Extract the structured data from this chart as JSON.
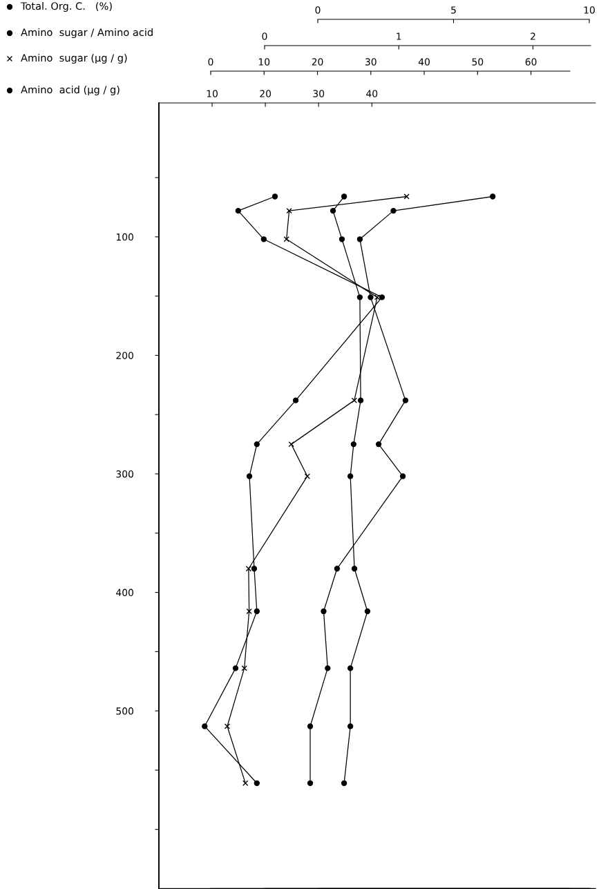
{
  "chart_data": [
    {
      "type": "line",
      "ylim": [
        650,
        -13
      ],
      "yticks": [
        {
          "value": 50,
          "label": null
        },
        100,
        {
          "value": 150,
          "label": null
        },
        200,
        {
          "value": 250,
          "label": null
        },
        300,
        {
          "value": 350,
          "label": null
        },
        400,
        {
          "value": 450,
          "label": null
        },
        500,
        {
          "value": 550,
          "label": null
        },
        {
          "value": 600,
          "label": null
        }
      ],
      "xlim": [
        0,
        82
      ],
      "xticks": [
        10,
        20,
        30,
        40
      ],
      "grid": false,
      "legend": "top left",
      "line_style": "solid",
      "marker": "circle",
      "series": [
        {
          "name": "Amino  acid (μg / g)",
          "color": "#000000",
          "x": [
            21.8,
            14.9,
            19.7,
            41.9,
            25.7,
            18.4,
            17.0,
            17.9,
            18.4,
            14.4,
            8.6,
            18.4
          ],
          "values": [
            66,
            78,
            102,
            151,
            238,
            275,
            302,
            380,
            416,
            464,
            513,
            561
          ]
        }
      ]
    },
    {
      "type": "line",
      "ylim": [
        650,
        -13
      ],
      "tick_labels": "x",
      "xlim": [
        0,
        67.3
      ],
      "xticks": [
        0,
        10,
        20,
        30,
        40,
        50,
        60
      ],
      "grid": false,
      "legend": "top left",
      "line_style": "solid",
      "marker": "cross",
      "series": [
        {
          "name": "Amino  sugar (μg / g)",
          "color": "#000000",
          "x": [
            36.7,
            14.7,
            14.2,
            31.2,
            26.9,
            15.1,
            18.1,
            7.1,
            7.2,
            6.3,
            3.1,
            6.5
          ],
          "values": [
            66,
            78,
            102,
            151,
            238,
            275,
            302,
            380,
            416,
            464,
            513,
            561
          ]
        }
      ]
    },
    {
      "type": "line",
      "ylim": [
        650,
        -13
      ],
      "tick_labels": "x",
      "xlim": [
        0,
        2.43
      ],
      "xticks": [
        0,
        1,
        2
      ],
      "grid": false,
      "legend": "top left",
      "line_style": "solid",
      "marker": "circle",
      "series": [
        {
          "name": "Amino  sugar / Amino acid",
          "color": "#000000",
          "x": [
            1.7,
            0.96,
            0.71,
            0.79,
            1.05,
            0.85,
            1.03,
            0.54,
            0.44,
            0.47,
            0.34,
            0.34
          ],
          "values": [
            66,
            78,
            102,
            151,
            238,
            275,
            302,
            380,
            416,
            464,
            513,
            561
          ]
        }
      ]
    },
    {
      "type": "line",
      "ylim": [
        650,
        -13
      ],
      "tick_labels": "x",
      "xlim": [
        0,
        10
      ],
      "xticks": [
        0,
        5,
        10
      ],
      "grid": false,
      "legend": "top left",
      "line_style": "solid",
      "marker": "circle",
      "series": [
        {
          "name": "Total. Org. C.   (%)",
          "color": "#000000",
          "x": [
            0.97,
            0.56,
            0.89,
            1.55,
            1.58,
            1.32,
            1.2,
            1.35,
            1.83,
            1.2,
            1.2,
            0.97
          ],
          "values": [
            66,
            78,
            102,
            151,
            238,
            275,
            302,
            380,
            416,
            464,
            513,
            561
          ]
        }
      ]
    }
  ]
}
